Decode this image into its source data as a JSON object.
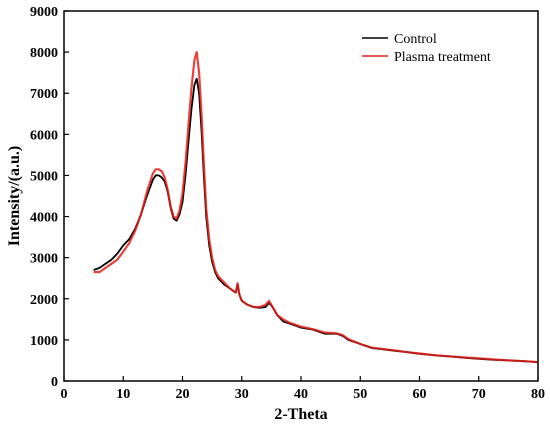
{
  "chart_data": {
    "type": "line",
    "title": "",
    "xlabel": "2-Theta",
    "ylabel": "Intensity/(a.u.)",
    "xlim": [
      0,
      80
    ],
    "ylim": [
      0,
      9000
    ],
    "x_ticks": [
      0,
      10,
      20,
      30,
      40,
      50,
      60,
      70,
      80
    ],
    "y_ticks": [
      0,
      1000,
      2000,
      3000,
      4000,
      5000,
      6000,
      7000,
      8000,
      9000
    ],
    "grid": false,
    "legend_position": "top-right",
    "series": [
      {
        "name": "Control",
        "color": "#000000",
        "x": [
          5,
          6,
          7,
          8,
          9,
          10,
          11,
          12,
          13,
          14,
          15,
          15.5,
          16,
          16.5,
          17,
          17.5,
          18,
          18.5,
          19,
          19.5,
          20,
          20.5,
          21,
          21.5,
          22,
          22.4,
          22.8,
          23.2,
          23.6,
          24,
          24.5,
          25,
          25.5,
          26,
          27,
          28,
          29,
          29.3,
          29.6,
          30,
          31,
          32,
          33,
          34,
          34.6,
          35.2,
          36,
          37,
          38,
          40,
          42,
          44,
          46,
          47,
          48,
          50,
          52,
          55,
          58,
          60,
          63,
          65,
          68,
          70,
          73,
          75,
          78,
          80
        ],
        "y": [
          2700,
          2750,
          2850,
          2950,
          3100,
          3300,
          3450,
          3700,
          4050,
          4500,
          4900,
          5000,
          5000,
          4950,
          4850,
          4600,
          4200,
          3950,
          3900,
          4050,
          4350,
          5000,
          5800,
          6600,
          7200,
          7350,
          7000,
          6100,
          5000,
          4000,
          3300,
          2900,
          2650,
          2500,
          2350,
          2250,
          2150,
          2350,
          2100,
          1950,
          1850,
          1800,
          1780,
          1800,
          1900,
          1800,
          1600,
          1450,
          1400,
          1300,
          1250,
          1150,
          1150,
          1100,
          1000,
          900,
          800,
          750,
          700,
          660,
          620,
          600,
          560,
          540,
          510,
          500,
          480,
          460
        ]
      },
      {
        "name": "Plasma treatment",
        "color": "#e3221c",
        "x": [
          5,
          6,
          7,
          8,
          9,
          10,
          11,
          12,
          13,
          14,
          15,
          15.5,
          16,
          16.5,
          17,
          17.5,
          18,
          18.5,
          19,
          19.5,
          20,
          20.5,
          21,
          21.5,
          22,
          22.4,
          22.8,
          23.2,
          23.6,
          24,
          24.5,
          25,
          25.5,
          26,
          27,
          28,
          29,
          29.3,
          29.6,
          30,
          31,
          32,
          33,
          34,
          34.6,
          35.2,
          36,
          37,
          38,
          40,
          42,
          44,
          46,
          47,
          48,
          50,
          52,
          55,
          58,
          60,
          63,
          65,
          68,
          70,
          73,
          75,
          78,
          80
        ],
        "y": [
          2650,
          2650,
          2750,
          2850,
          2950,
          3150,
          3350,
          3650,
          4050,
          4600,
          5050,
          5150,
          5150,
          5100,
          4950,
          4650,
          4250,
          4000,
          3950,
          4150,
          4550,
          5300,
          6200,
          7100,
          7800,
          8000,
          7500,
          6500,
          5300,
          4200,
          3450,
          3000,
          2700,
          2550,
          2400,
          2250,
          2150,
          2380,
          2100,
          1950,
          1850,
          1800,
          1800,
          1850,
          1950,
          1800,
          1600,
          1500,
          1420,
          1320,
          1260,
          1180,
          1160,
          1120,
          1020,
          900,
          810,
          760,
          700,
          670,
          620,
          600,
          570,
          550,
          520,
          500,
          480,
          460
        ]
      }
    ]
  }
}
